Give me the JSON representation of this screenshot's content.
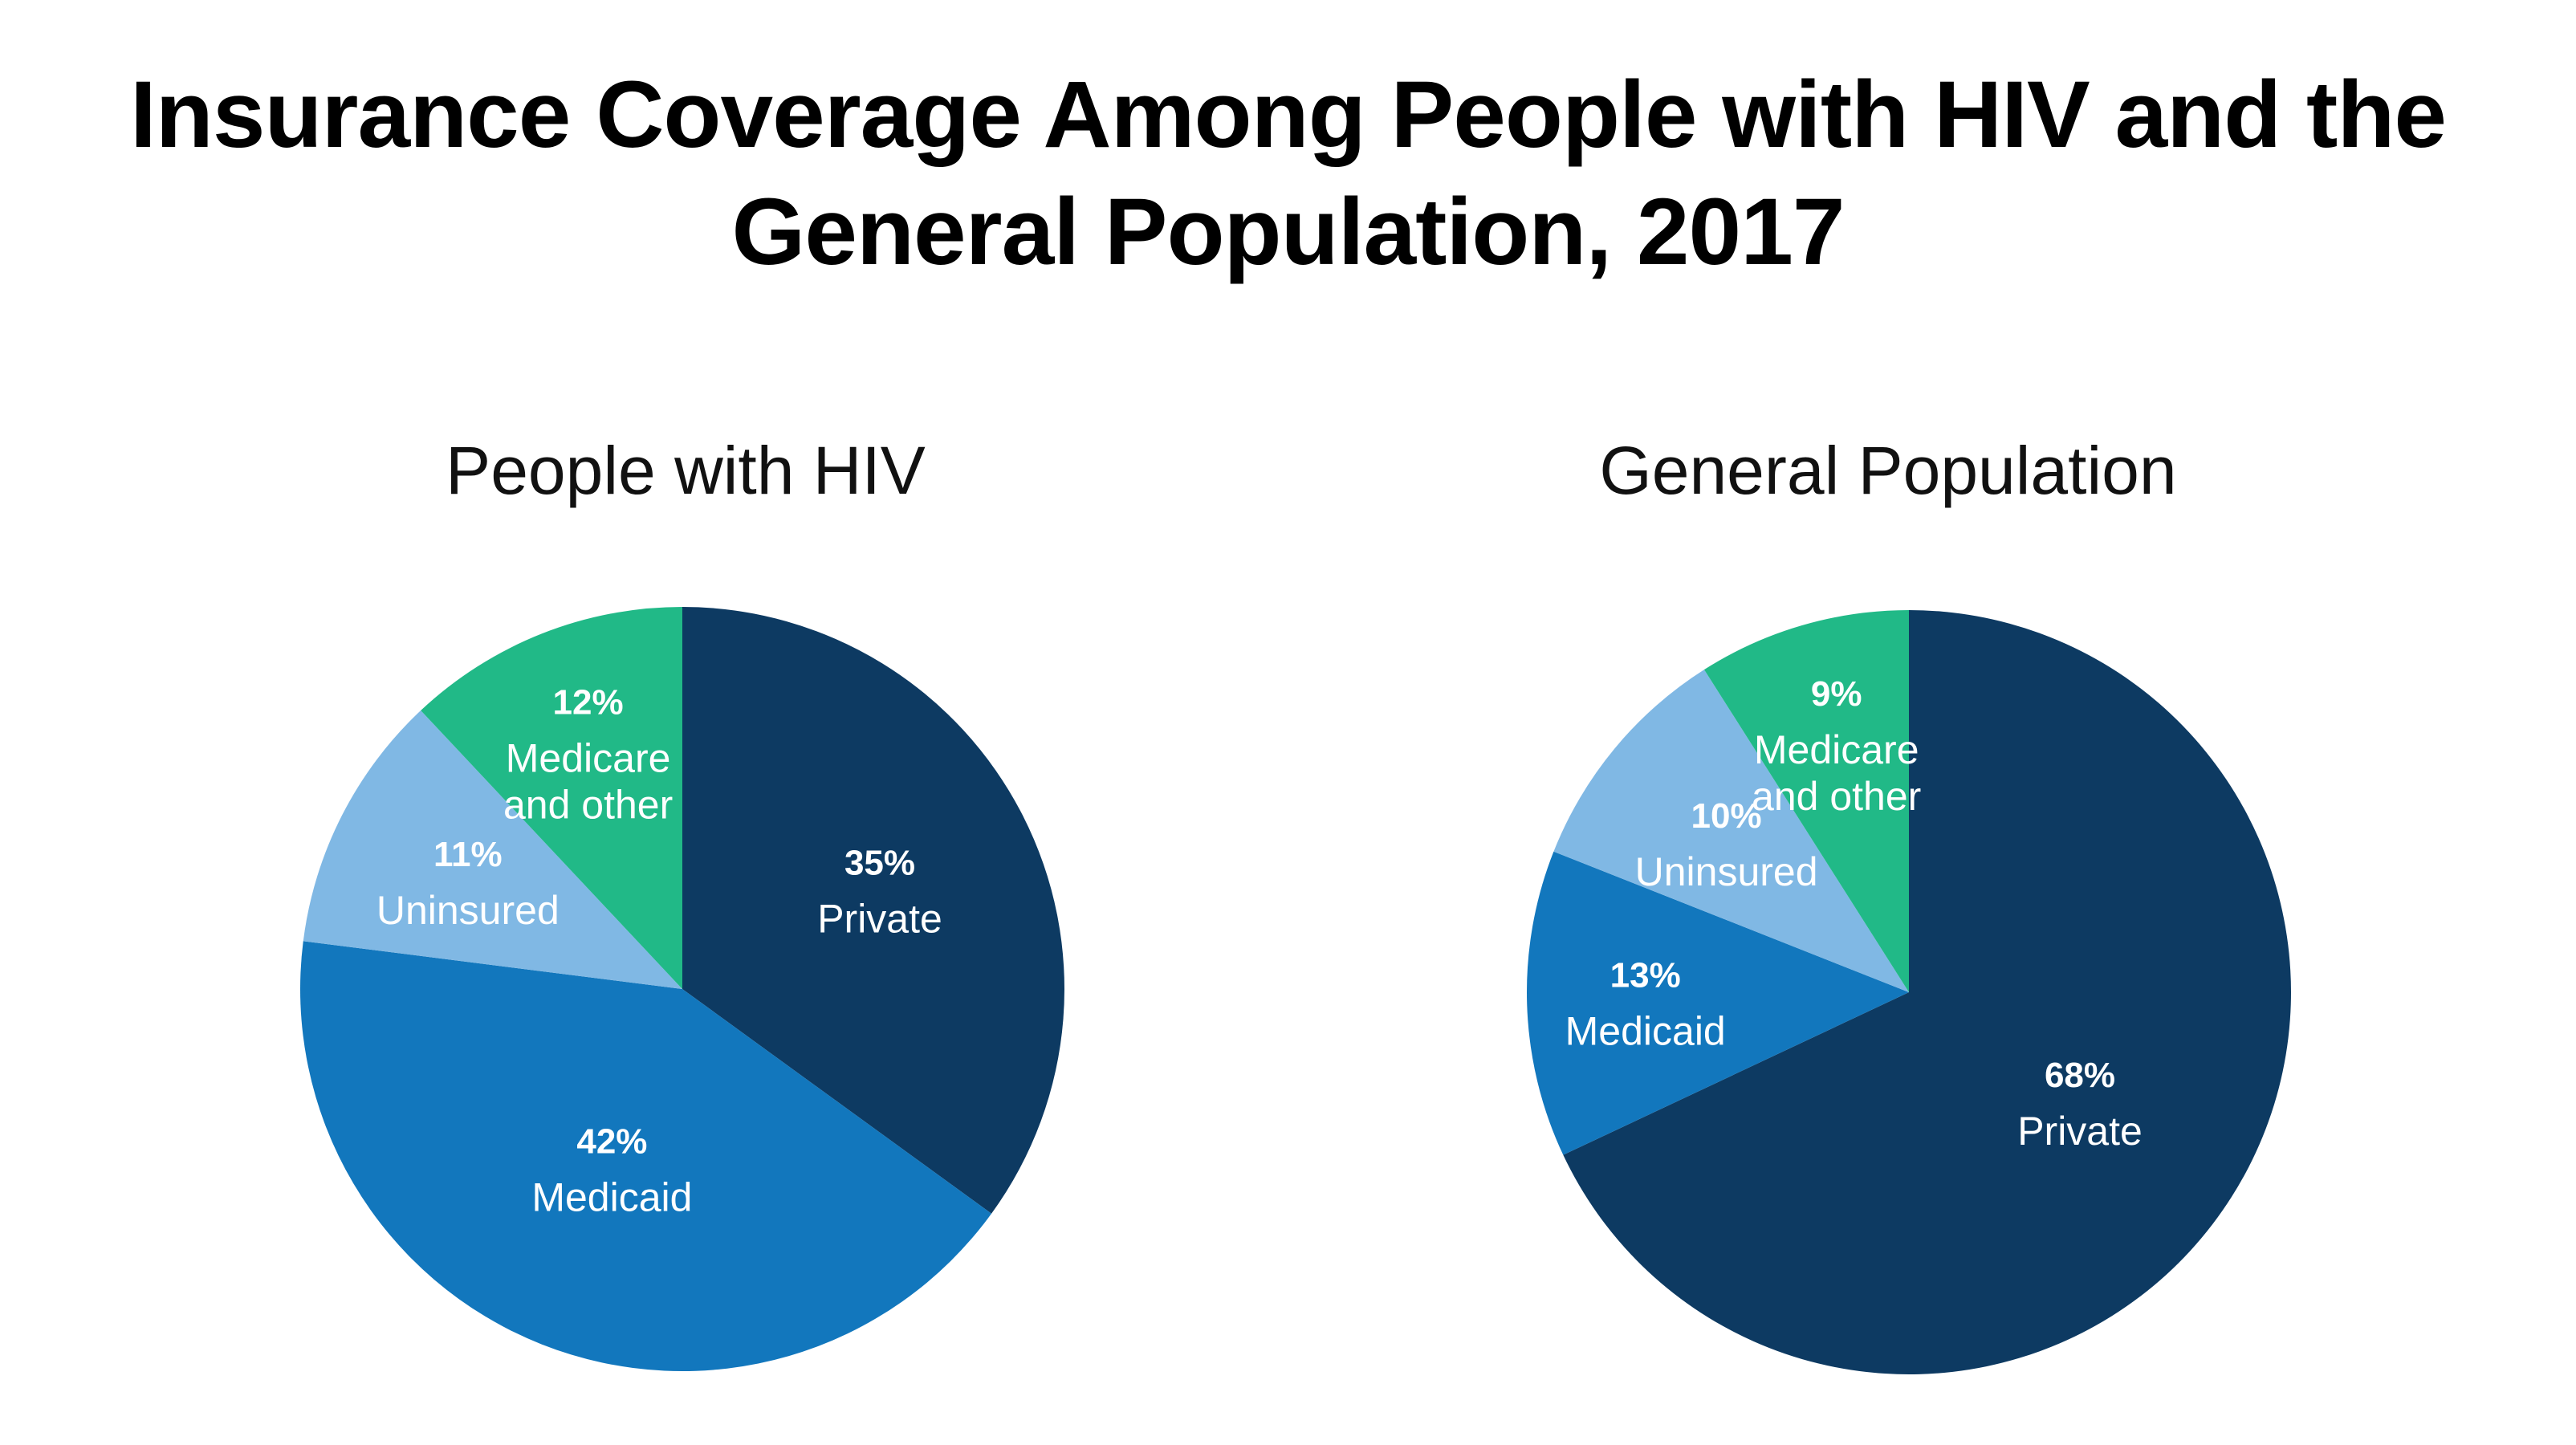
{
  "title_lines": [
    "Insurance Coverage Among People with HIV and the",
    "General Population, 2017"
  ],
  "colors": {
    "Private": "#0d3a62",
    "Medicaid": "#1277bd",
    "Uninsured": "#80b8e4",
    "Medicare and other": "#21b987"
  },
  "chart_data": [
    {
      "type": "pie",
      "title": "People with HIV",
      "slices": [
        {
          "category": "Private",
          "value": 35,
          "pct_label": "35%",
          "label_lines": [
            "Private"
          ]
        },
        {
          "category": "Medicaid",
          "value": 42,
          "pct_label": "42%",
          "label_lines": [
            "Medicaid"
          ]
        },
        {
          "category": "Uninsured",
          "value": 11,
          "pct_label": "11%",
          "label_lines": [
            "Uninsured"
          ]
        },
        {
          "category": "Medicare and other",
          "value": 12,
          "pct_label": "12%",
          "label_lines": [
            "Medicare",
            "and other"
          ]
        }
      ]
    },
    {
      "type": "pie",
      "title": "General Population",
      "slices": [
        {
          "category": "Private",
          "value": 68,
          "pct_label": "68%",
          "label_lines": [
            "Private"
          ]
        },
        {
          "category": "Medicaid",
          "value": 13,
          "pct_label": "13%",
          "label_lines": [
            "Medicaid"
          ]
        },
        {
          "category": "Uninsured",
          "value": 10,
          "pct_label": "10%",
          "label_lines": [
            "Uninsured"
          ]
        },
        {
          "category": "Medicare and other",
          "value": 9,
          "pct_label": "9%",
          "label_lines": [
            "Medicare",
            "and other"
          ]
        }
      ]
    }
  ]
}
